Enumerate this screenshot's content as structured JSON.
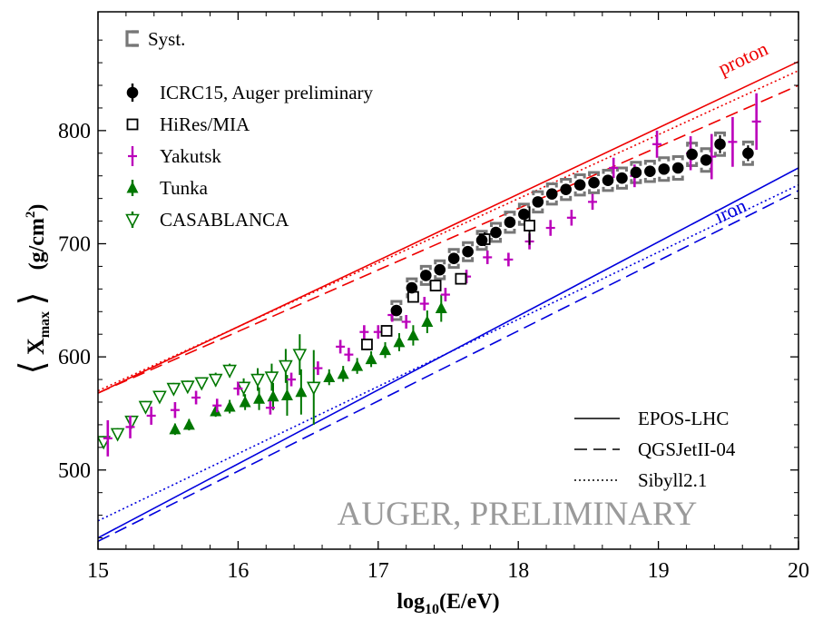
{
  "chart_data": {
    "type": "scatter",
    "xlabel_prefix": "log",
    "xlabel_sub": "10",
    "xlabel_suffix": "(E/eV)",
    "ylabel_main": "X",
    "ylabel_sub": "max",
    "ylabel_unit_prefix": "(g/cm",
    "ylabel_unit_sup": "2",
    "ylabel_unit_suffix": ")",
    "xlim": [
      15,
      20
    ],
    "ylim": [
      430,
      905
    ],
    "xticks": [
      "15",
      "16",
      "17",
      "18",
      "19",
      "20"
    ],
    "xtick_values": [
      15,
      16,
      17,
      18,
      19,
      20
    ],
    "yticks": [
      "500",
      "600",
      "700",
      "800"
    ],
    "ytick_values": [
      500,
      600,
      700,
      800
    ],
    "watermark": "AUGER, PRELIMINARY",
    "legend_syst": "Syst.",
    "legend": [
      {
        "name": "ICRC15, Auger preliminary",
        "marker": "circle",
        "color": "#000000"
      },
      {
        "name": "HiRes/MIA",
        "marker": "open-square",
        "color": "#000000"
      },
      {
        "name": "Yakutsk",
        "marker": "vbar",
        "color": "#bb00bb"
      },
      {
        "name": "Tunka",
        "marker": "triangle",
        "color": "#007700"
      },
      {
        "name": "CASABLANCA",
        "marker": "open-triangle-down",
        "color": "#007700"
      }
    ],
    "model_legend": [
      {
        "name": "EPOS-LHC",
        "dash": "solid"
      },
      {
        "name": "QGSJetII-04",
        "dash": "dashed"
      },
      {
        "name": "Sibyll2.1",
        "dash": "dotted"
      }
    ],
    "model_labels": {
      "proton": "proton",
      "iron": "iron"
    },
    "colors": {
      "proton": "#ee0000",
      "iron": "#0000dd",
      "syst": "#777777"
    },
    "models": [
      {
        "name": "EPOS-LHC proton",
        "dash": "solid",
        "color": "#ee0000",
        "points": [
          [
            15,
            568
          ],
          [
            20,
            861
          ]
        ]
      },
      {
        "name": "QGSJetII-04 proton",
        "dash": "dashed",
        "color": "#ee0000",
        "points": [
          [
            15,
            568
          ],
          [
            20,
            840
          ]
        ]
      },
      {
        "name": "Sibyll2.1 proton",
        "dash": "dotted",
        "color": "#ee0000",
        "points": [
          [
            15,
            570
          ],
          [
            20,
            853
          ]
        ]
      },
      {
        "name": "EPOS-LHC iron",
        "dash": "solid",
        "color": "#0000dd",
        "points": [
          [
            15,
            440
          ],
          [
            20,
            767
          ]
        ]
      },
      {
        "name": "QGSJetII-04 iron",
        "dash": "dashed",
        "color": "#0000dd",
        "points": [
          [
            15,
            437
          ],
          [
            20,
            747
          ]
        ]
      },
      {
        "name": "Sibyll2.1 iron",
        "dash": "dotted",
        "color": "#0000dd",
        "points": [
          [
            15,
            455
          ],
          [
            20,
            752
          ]
        ]
      }
    ],
    "series": [
      {
        "name": "ICRC15, Auger preliminary",
        "marker": "circle",
        "color": "#000000",
        "x": [
          17.13,
          17.24,
          17.34,
          17.44,
          17.54,
          17.64,
          17.74,
          17.84,
          17.94,
          18.04,
          18.14,
          18.24,
          18.34,
          18.44,
          18.54,
          18.64,
          18.74,
          18.84,
          18.94,
          19.04,
          19.14,
          19.24,
          19.34,
          19.44,
          19.64
        ],
        "y": [
          641,
          661,
          672,
          677,
          687,
          693,
          703,
          710,
          719,
          726,
          737,
          744,
          748,
          752,
          754,
          756,
          758,
          763,
          764,
          766,
          767,
          779,
          774,
          788,
          780
        ],
        "err": [
          4,
          3,
          3,
          3,
          3,
          3,
          3,
          3,
          3,
          3,
          3,
          3,
          3,
          3,
          3,
          3,
          3,
          3,
          3,
          3,
          3,
          5,
          5,
          8,
          7
        ],
        "syst": [
          8,
          8,
          8,
          8,
          8,
          8,
          8,
          8,
          9,
          9,
          9,
          9,
          9,
          9,
          9,
          9,
          9,
          9,
          9,
          10,
          10,
          10,
          10,
          10,
          10
        ]
      },
      {
        "name": "HiRes/MIA",
        "marker": "open-square",
        "color": "#000000",
        "x": [
          16.92,
          17.06,
          17.25,
          17.41,
          17.59,
          17.76,
          18.08
        ],
        "y": [
          611,
          623,
          653,
          663,
          669,
          704,
          716
        ],
        "err": [
          5,
          4,
          3,
          3,
          4,
          6,
          17
        ]
      },
      {
        "name": "Yakutsk",
        "marker": "vbar",
        "color": "#bb00bb",
        "x": [
          15.07,
          15.23,
          15.38,
          15.55,
          15.7,
          15.85,
          16.0,
          16.23,
          16.38,
          16.57,
          16.73,
          16.79,
          16.9,
          17.0,
          17.1,
          17.2,
          17.33,
          17.48,
          17.63,
          17.78,
          17.93,
          18.08,
          18.23,
          18.38,
          18.53,
          18.68,
          18.83,
          18.99,
          19.23,
          19.38,
          19.53,
          19.7
        ],
        "y": [
          528,
          538,
          548,
          553,
          564,
          557,
          572,
          555,
          580,
          590,
          609,
          602,
          622,
          622,
          637,
          631,
          647,
          655,
          671,
          688,
          686,
          702,
          714,
          723,
          737,
          767,
          760,
          788,
          780,
          777,
          790,
          808
        ],
        "err": [
          16,
          10,
          8,
          7,
          6,
          6,
          6,
          6,
          6,
          6,
          6,
          6,
          6,
          6,
          6,
          6,
          6,
          6,
          6,
          6,
          6,
          7,
          7,
          7,
          7,
          9,
          10,
          12,
          15,
          20,
          22,
          25
        ]
      },
      {
        "name": "Tunka",
        "marker": "triangle",
        "color": "#007700",
        "x": [
          15.55,
          15.65,
          15.84,
          15.94,
          16.05,
          16.15,
          16.25,
          16.35,
          16.45,
          16.65,
          16.75,
          16.85,
          16.95,
          17.05,
          17.15,
          17.25,
          17.35,
          17.45
        ],
        "y": [
          536,
          540,
          552,
          556,
          560,
          563,
          565,
          566,
          569,
          582,
          585,
          592,
          598,
          606,
          613,
          619,
          631,
          643
        ],
        "err": [
          5,
          5,
          5,
          6,
          7,
          10,
          12,
          18,
          20,
          7,
          7,
          7,
          7,
          7,
          8,
          9,
          10,
          12
        ]
      },
      {
        "name": "CASABLANCA",
        "marker": "open-triangle-down",
        "color": "#007700",
        "x": [
          15.04,
          15.14,
          15.24,
          15.34,
          15.44,
          15.54,
          15.64,
          15.74,
          15.84,
          15.94,
          16.04,
          16.14,
          16.24,
          16.34,
          16.44,
          16.54
        ],
        "y": [
          525,
          532,
          543,
          556,
          565,
          572,
          574,
          577,
          580,
          588,
          573,
          580,
          582,
          592,
          602,
          573
        ],
        "err": [
          5,
          5,
          5,
          5,
          5,
          5,
          5,
          5,
          6,
          6,
          8,
          10,
          12,
          15,
          18,
          33
        ]
      }
    ]
  }
}
